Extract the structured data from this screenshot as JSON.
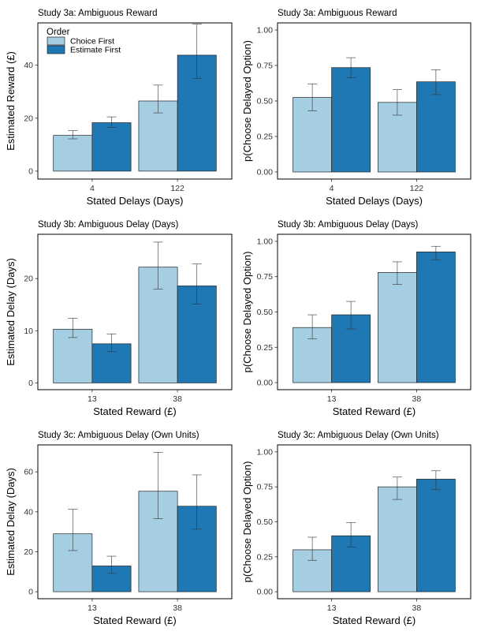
{
  "legend": {
    "title": "Order",
    "entries": [
      "Choice First",
      "Estimate First"
    ],
    "placement": "top-left (inside first panel)"
  },
  "colors": {
    "Choice First": "#a6cee3",
    "Estimate First": "#1f78b4",
    "bar_outline": "#222222",
    "error_bar": "#333333"
  },
  "chart_data": [
    {
      "type": "bar",
      "title": "Study 3a: Ambiguous Reward",
      "xlabel": "Stated Delays (Days)",
      "ylabel": "Estimated Reward (£)",
      "categories": [
        "4",
        "122"
      ],
      "ylim": [
        -3,
        56
      ],
      "yticks": [
        0,
        20,
        40
      ],
      "ytick_labels": [
        "0",
        "20",
        "40"
      ],
      "grid": false,
      "series": [
        {
          "name": "Choice First",
          "values": [
            13.5,
            26.5
          ],
          "err_low": [
            12.2,
            22.0
          ],
          "err_high": [
            15.3,
            32.5
          ]
        },
        {
          "name": "Estimate First",
          "values": [
            18.3,
            43.8
          ],
          "err_low": [
            16.5,
            35.0
          ],
          "err_high": [
            20.5,
            55.5
          ]
        }
      ]
    },
    {
      "type": "bar",
      "title": "Study 3a: Ambiguous Reward",
      "xlabel": "Stated Delays (Days)",
      "ylabel": "p(Choose Delayed Option)",
      "categories": [
        "4",
        "122"
      ],
      "ylim": [
        -0.05,
        1.05
      ],
      "yticks": [
        0,
        0.25,
        0.5,
        0.75,
        1
      ],
      "ytick_labels": [
        "0.00",
        "0.25",
        "0.50",
        "0.75",
        "1.00"
      ],
      "grid": false,
      "series": [
        {
          "name": "Choice First",
          "values": [
            0.525,
            0.49
          ],
          "err_low": [
            0.43,
            0.4
          ],
          "err_high": [
            0.62,
            0.58
          ]
        },
        {
          "name": "Estimate First",
          "values": [
            0.735,
            0.635
          ],
          "err_low": [
            0.665,
            0.545
          ],
          "err_high": [
            0.805,
            0.72
          ]
        }
      ]
    },
    {
      "type": "bar",
      "title": "Study 3b: Ambiguous Delay (Days)",
      "xlabel": "Stated Reward (£)",
      "ylabel": "Estimated Delay (Days)",
      "categories": [
        "13",
        "38"
      ],
      "ylim": [
        -1.3,
        28.5
      ],
      "yticks": [
        0,
        10,
        20
      ],
      "ytick_labels": [
        "0",
        "10",
        "20"
      ],
      "grid": false,
      "series": [
        {
          "name": "Choice First",
          "values": [
            10.3,
            22.2
          ],
          "err_low": [
            8.7,
            18.0
          ],
          "err_high": [
            12.4,
            27.0
          ]
        },
        {
          "name": "Estimate First",
          "values": [
            7.5,
            18.6
          ],
          "err_low": [
            6.0,
            15.1
          ],
          "err_high": [
            9.4,
            22.8
          ]
        }
      ]
    },
    {
      "type": "bar",
      "title": "Study 3b: Ambiguous Delay (Days)",
      "xlabel": "Stated Reward (£)",
      "ylabel": "p(Choose Delayed Option)",
      "categories": [
        "13",
        "38"
      ],
      "ylim": [
        -0.05,
        1.05
      ],
      "yticks": [
        0,
        0.25,
        0.5,
        0.75,
        1
      ],
      "ytick_labels": [
        "0.00",
        "0.25",
        "0.50",
        "0.75",
        "1.00"
      ],
      "grid": false,
      "series": [
        {
          "name": "Choice First",
          "values": [
            0.39,
            0.78
          ],
          "err_low": [
            0.31,
            0.695
          ],
          "err_high": [
            0.48,
            0.855
          ]
        },
        {
          "name": "Estimate First",
          "values": [
            0.48,
            0.925
          ],
          "err_low": [
            0.38,
            0.87
          ],
          "err_high": [
            0.575,
            0.965
          ]
        }
      ]
    },
    {
      "type": "bar",
      "title": "Study 3c: Ambiguous Delay (Own Units)",
      "xlabel": "Stated Reward (£)",
      "ylabel": "Estimated Delay (Days)",
      "categories": [
        "13",
        "38"
      ],
      "ylim": [
        -3.5,
        73.5
      ],
      "yticks": [
        0,
        20,
        40,
        60
      ],
      "ytick_labels": [
        "0",
        "20",
        "40",
        "60"
      ],
      "grid": false,
      "series": [
        {
          "name": "Choice First",
          "values": [
            29.0,
            50.3
          ],
          "err_low": [
            20.6,
            36.5
          ],
          "err_high": [
            41.3,
            69.8
          ]
        },
        {
          "name": "Estimate First",
          "values": [
            12.9,
            42.8
          ],
          "err_low": [
            9.2,
            31.3
          ],
          "err_high": [
            17.8,
            58.5
          ]
        }
      ]
    },
    {
      "type": "bar",
      "title": "Study 3c: Ambiguous Delay (Own Units)",
      "xlabel": "Stated Reward (£)",
      "ylabel": "p(Choose Delayed Option)",
      "categories": [
        "13",
        "38"
      ],
      "ylim": [
        -0.05,
        1.05
      ],
      "yticks": [
        0,
        0.25,
        0.5,
        0.75,
        1
      ],
      "ytick_labels": [
        "0.00",
        "0.25",
        "0.50",
        "0.75",
        "1.00"
      ],
      "grid": false,
      "series": [
        {
          "name": "Choice First",
          "values": [
            0.3,
            0.75
          ],
          "err_low": [
            0.225,
            0.66
          ],
          "err_high": [
            0.39,
            0.82
          ]
        },
        {
          "name": "Estimate First",
          "values": [
            0.4,
            0.805
          ],
          "err_low": [
            0.32,
            0.73
          ],
          "err_high": [
            0.495,
            0.865
          ]
        }
      ]
    }
  ]
}
